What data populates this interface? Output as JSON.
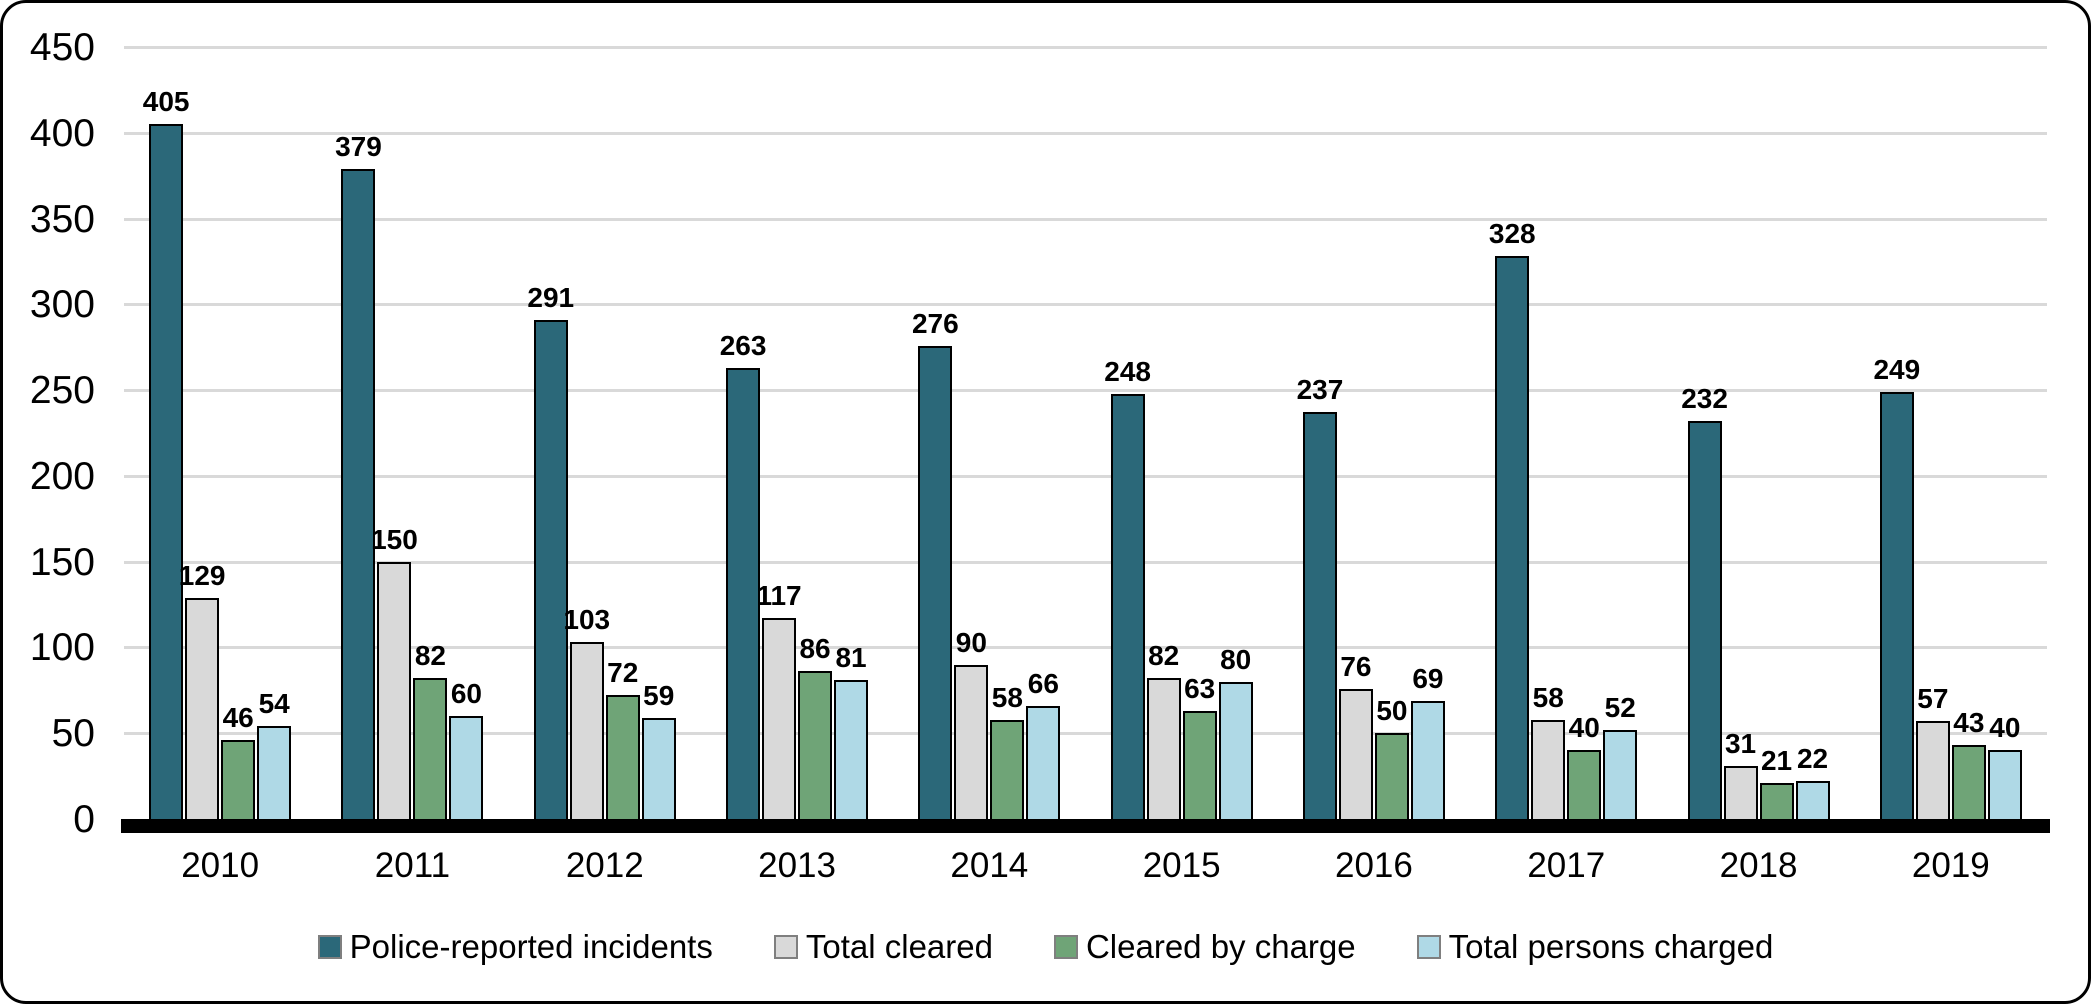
{
  "chart_data": {
    "type": "bar",
    "title": "",
    "xlabel": "",
    "ylabel": "",
    "categories": [
      "2010",
      "2011",
      "2012",
      "2013",
      "2014",
      "2015",
      "2016",
      "2017",
      "2018",
      "2019"
    ],
    "series": [
      {
        "name": "Police-reported incidents",
        "color": "#2B6879",
        "values": [
          405,
          379,
          291,
          263,
          276,
          248,
          237,
          328,
          232,
          249
        ]
      },
      {
        "name": "Total cleared",
        "color": "#D9D9D9",
        "values": [
          129,
          150,
          103,
          117,
          90,
          82,
          76,
          58,
          31,
          57
        ]
      },
      {
        "name": "Cleared by charge",
        "color": "#6FA477",
        "values": [
          46,
          82,
          72,
          86,
          58,
          63,
          50,
          40,
          21,
          43
        ]
      },
      {
        "name": "Total persons charged",
        "color": "#AFD9E6",
        "values": [
          54,
          60,
          59,
          81,
          66,
          80,
          69,
          52,
          22,
          40
        ]
      }
    ],
    "ylim": [
      0,
      450
    ],
    "ytick_step": 50,
    "ytick_labels": [
      "0",
      "50",
      "100",
      "150",
      "200",
      "250",
      "300",
      "350",
      "400",
      "450"
    ],
    "grid": "horizontal",
    "legend_position": "bottom",
    "colors": {
      "gridline": "#D9D9D9",
      "axis_line": "#000000",
      "bar_outline": "#000000",
      "data_label": "#000000",
      "background": "#FFFFFF"
    }
  }
}
